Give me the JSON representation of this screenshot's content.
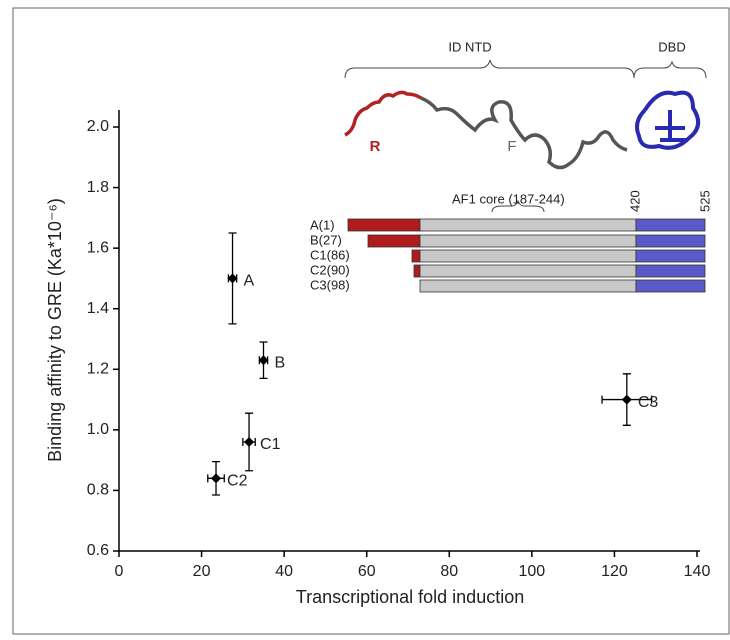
{
  "chart_data": {
    "type": "scatter",
    "xlabel": "Transcriptional fold induction",
    "ylabel": "Binding affinity to GRE (Ka*10⁻⁶)",
    "x": [
      27.5,
      35,
      31.5,
      23.5,
      123
    ],
    "values": [
      1.5,
      1.23,
      0.96,
      0.84,
      1.1
    ],
    "x_err": [
      1,
      1,
      1.5,
      2,
      6
    ],
    "y_err": [
      0.15,
      0.06,
      0.095,
      0.055,
      0.085
    ],
    "point_labels": [
      "A",
      "B",
      "C1",
      "C2",
      "C3"
    ],
    "color": "#000000",
    "xlim": [
      0,
      140
    ],
    "xticks": [
      0,
      20,
      40,
      60,
      80,
      100,
      120,
      140
    ],
    "ylim": [
      0.6,
      2.0
    ],
    "yticks": [
      0.6,
      0.8,
      {
        "value": 1,
        "label": "1.0"
      },
      1.2,
      1.4,
      1.6,
      1.8,
      {
        "value": 2,
        "label": "2.0"
      }
    ],
    "inset": {
      "domains": [
        "ID NTD",
        "DBD"
      ],
      "regions": [
        "R",
        "F"
      ],
      "af1": "AF1 core (187-244)",
      "boundaries": [
        "420",
        "525"
      ],
      "constructs": [
        "A(1)",
        "B(27)",
        "C1(86)",
        "C2(90)",
        "C3(98)"
      ]
    }
  }
}
